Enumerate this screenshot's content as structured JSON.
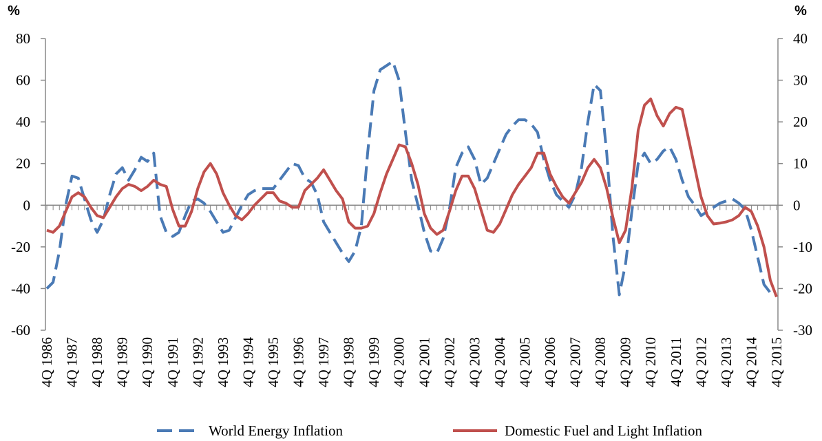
{
  "chart_data": {
    "type": "line",
    "ylabel": "%",
    "y2label": "%",
    "categories": [
      "4Q 1986",
      null,
      null,
      null,
      "4Q 1987",
      null,
      null,
      null,
      "4Q 1988",
      null,
      null,
      null,
      "4Q 1989",
      null,
      null,
      null,
      "4Q 1990",
      null,
      null,
      null,
      "4Q 1991",
      null,
      null,
      null,
      "4Q 1992",
      null,
      null,
      null,
      "4Q 1993",
      null,
      null,
      null,
      "4Q 1994",
      null,
      null,
      null,
      "4Q 1995",
      null,
      null,
      null,
      "4Q 1996",
      null,
      null,
      null,
      "4Q 1997",
      null,
      null,
      null,
      "4Q 1998",
      null,
      null,
      null,
      "4Q 1999",
      null,
      null,
      null,
      "4Q 2000",
      null,
      null,
      null,
      "4Q 2001",
      null,
      null,
      null,
      "4Q 2002",
      null,
      null,
      null,
      "4Q 2003",
      null,
      null,
      null,
      "4Q 2004",
      null,
      null,
      null,
      "4Q 2005",
      null,
      null,
      null,
      "4Q 2006",
      null,
      null,
      null,
      "4Q 2007",
      null,
      null,
      null,
      "4Q 2008",
      null,
      null,
      null,
      "4Q 2009",
      null,
      null,
      null,
      "4Q 2010",
      null,
      null,
      null,
      "4Q 2011",
      null,
      null,
      null,
      "4Q 2012",
      null,
      null,
      null,
      "4Q 2013",
      null,
      null,
      null,
      "4Q 2014",
      null,
      null,
      null,
      "4Q 2015"
    ],
    "series": [
      {
        "name": "World Energy Inflation",
        "color": "#4a7ab5",
        "dashed": true,
        "values": [
          -40,
          -37,
          -22,
          0,
          14,
          13,
          3,
          -7,
          -13,
          -7,
          5,
          15,
          18,
          12,
          17,
          23,
          21,
          25,
          -5,
          -13,
          -15,
          -13,
          -5,
          2,
          3,
          1,
          -3,
          -8,
          -13,
          -12,
          -6,
          0,
          5,
          7,
          8,
          8,
          8,
          12,
          16,
          20,
          19,
          13,
          11,
          5,
          -8,
          -13,
          -18,
          -23,
          -27,
          -22,
          -10,
          25,
          55,
          65,
          67,
          69,
          60,
          35,
          12,
          0,
          -13,
          -22,
          -23,
          -16,
          -2,
          18,
          25,
          28,
          22,
          10,
          13,
          20,
          27,
          34,
          38,
          41,
          41,
          39,
          35,
          22,
          12,
          5,
          2,
          -1,
          5,
          18,
          40,
          58,
          55,
          25,
          -15,
          -43,
          -28,
          -3,
          20,
          25,
          20,
          22,
          26,
          28,
          22,
          12,
          4,
          0,
          -5,
          -3,
          -1,
          1,
          2,
          3,
          1,
          -2,
          -12,
          -25,
          -38,
          -42,
          null
        ]
      },
      {
        "name": "Domestic Fuel and Light Inflation",
        "color": "#c0504d",
        "axis": "y2",
        "values": [
          -6,
          -6.5,
          -5,
          -1.5,
          2,
          3,
          2,
          -0.5,
          -2.5,
          -3,
          -0.5,
          2,
          4,
          5,
          4.5,
          3.5,
          4.5,
          6,
          5,
          4.5,
          -1,
          -5,
          -5,
          -1.5,
          4,
          8,
          10,
          7.5,
          3,
          0,
          -2.5,
          -3.5,
          -2,
          0,
          1.5,
          3,
          3,
          1,
          0.5,
          -0.5,
          -0.5,
          3.5,
          5,
          6.5,
          8.5,
          6,
          3.5,
          1.5,
          -4,
          -5.5,
          -5.5,
          -5,
          -2,
          3,
          7.5,
          11,
          14.5,
          14,
          10,
          5,
          -2,
          -5.5,
          -7,
          -6,
          -1.5,
          3.5,
          7,
          7,
          4,
          -1,
          -6,
          -6.5,
          -4.5,
          -1,
          2.5,
          5,
          7,
          9,
          12.5,
          12.5,
          7.5,
          4.5,
          2,
          0.5,
          3,
          5.5,
          9,
          11,
          9,
          4,
          -3,
          -9,
          -6,
          4,
          18,
          24,
          25.5,
          21.5,
          19,
          22,
          23.5,
          23,
          16,
          9,
          2,
          -2.5,
          -4.5,
          -4.3,
          -4,
          -3.5,
          -2.5,
          -0.5,
          -1.5,
          -5,
          -10,
          -18,
          -22
        ]
      }
    ],
    "ylim": [
      -60,
      80
    ],
    "yticks": [
      -60,
      -40,
      -20,
      0,
      20,
      40,
      60,
      80
    ],
    "y2lim": [
      -30,
      40
    ],
    "y2ticks": [
      -30,
      -20,
      -10,
      0,
      10,
      20,
      30,
      40
    ],
    "legend": "bottom"
  }
}
